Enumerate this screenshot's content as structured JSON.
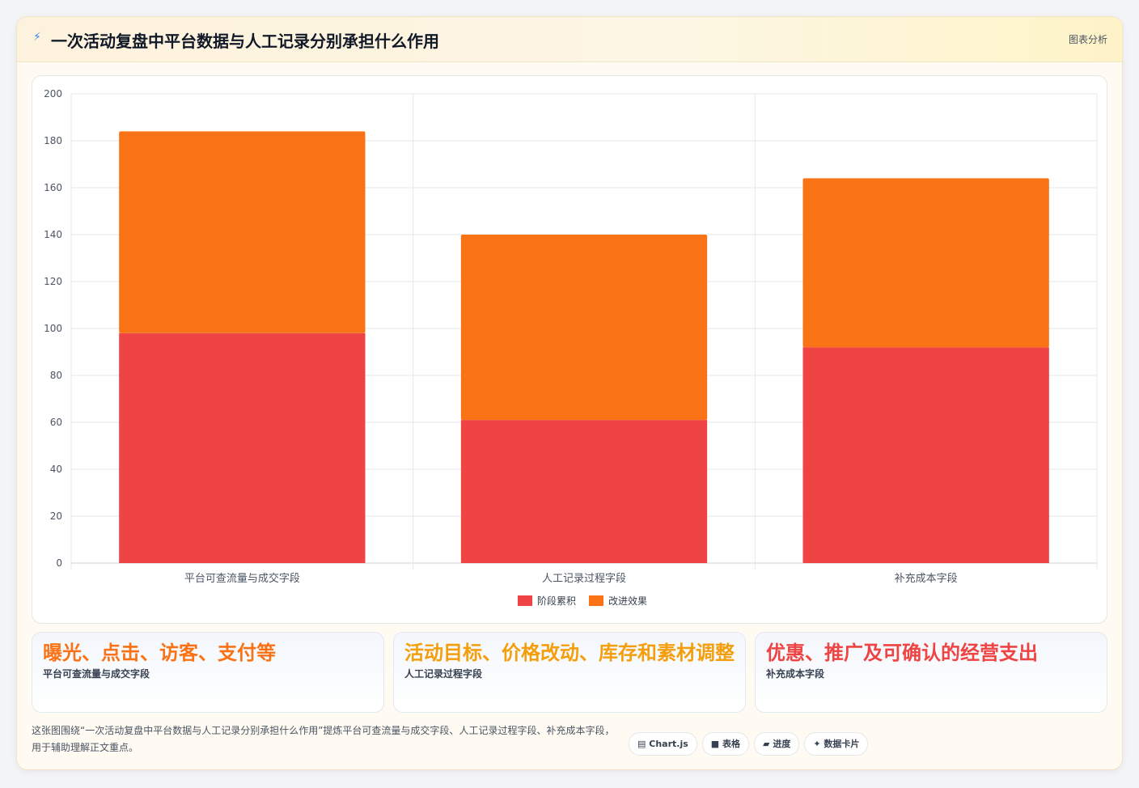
{
  "header": {
    "icon": "bolt-icon",
    "title": "一次活动复盘中平台数据与人工记录分别承担什么作用",
    "tag": "图表分析"
  },
  "chart_data": {
    "type": "bar",
    "stacked": true,
    "categories": [
      "平台可查流量与成交字段",
      "人工记录过程字段",
      "补充成本字段"
    ],
    "series": [
      {
        "name": "阶段累积",
        "color": "#ef4444",
        "values": [
          98,
          61,
          92
        ]
      },
      {
        "name": "改进效果",
        "color": "#f97316",
        "values": [
          86,
          79,
          72
        ]
      }
    ],
    "ylim": [
      0,
      200
    ],
    "yticks": [
      0,
      20,
      40,
      60,
      80,
      100,
      120,
      140,
      160,
      180,
      200
    ],
    "grid": true,
    "legend": "bottom"
  },
  "stats": [
    {
      "value": "曝光、点击、访客、支付等",
      "label": "平台可查流量与成交字段",
      "color": "#f97316"
    },
    {
      "value": "活动目标、价格改动、库存和素材调整",
      "label": "人工记录过程字段",
      "color": "#f59e0b"
    },
    {
      "value": "优惠、推广及可确认的经营支出",
      "label": "补充成本字段",
      "color": "#ef4444"
    }
  ],
  "description": "这张图围绕“一次活动复盘中平台数据与人工记录分别承担什么作用”提炼平台可查流量与成交字段、人工记录过程字段、补充成本字段，用于辅助理解正文重点。",
  "chips": [
    {
      "icon": "chart-icon",
      "label": "Chart.js"
    },
    {
      "icon": "table-icon",
      "label": "表格"
    },
    {
      "icon": "progress-icon",
      "label": "进度"
    },
    {
      "icon": "sparkle-icon",
      "label": "数据卡片"
    }
  ]
}
